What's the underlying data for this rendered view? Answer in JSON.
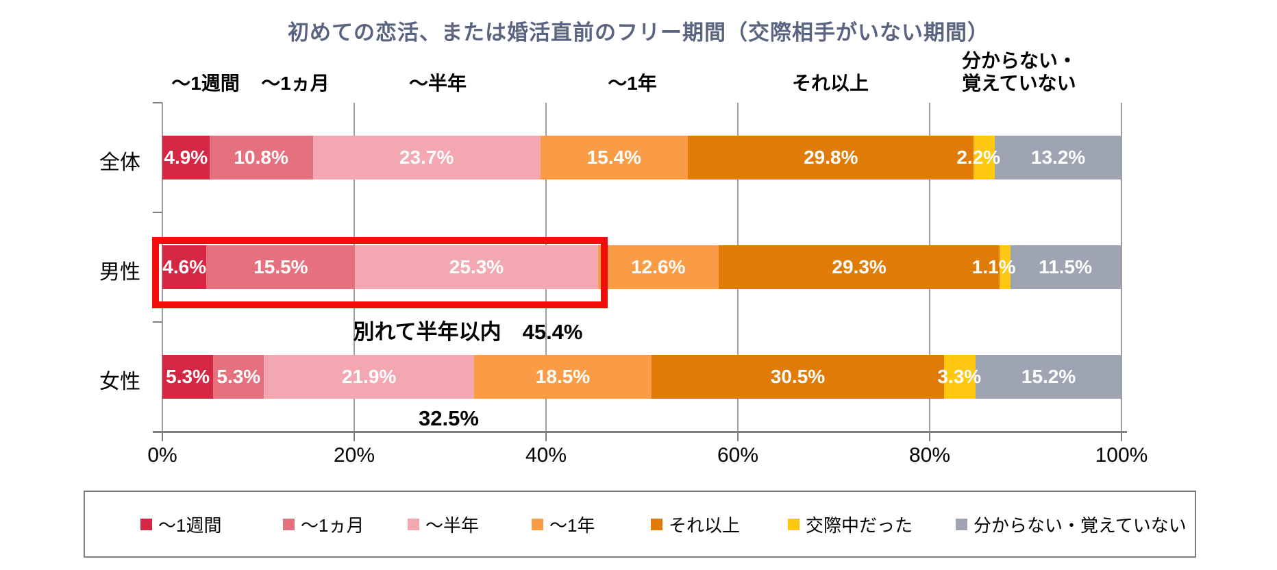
{
  "title": "初めての恋活、または婚活直前のフリー期間（交際相手がいない期間）",
  "chart_data": {
    "type": "bar",
    "variant": "horizontal-stacked-100pct",
    "title": "初めての恋活、または婚活直前のフリー期間（交際相手がいない期間）",
    "categories": [
      "全体",
      "男性",
      "女性"
    ],
    "segments": [
      {
        "label": "～1週間",
        "color": "#d32743"
      },
      {
        "label": "～1ヵ月",
        "color": "#e5717f"
      },
      {
        "label": "～半年",
        "color": "#f2a7b1"
      },
      {
        "label": "～1年",
        "color": "#f99c45"
      },
      {
        "label": "それ以上",
        "color": "#e07b08"
      },
      {
        "label": "交際中だった",
        "color": "#fec810"
      },
      {
        "label": "分からない・覚えていない",
        "color": "#9ea4b2"
      }
    ],
    "series": [
      {
        "name": "全体",
        "values": [
          4.9,
          10.8,
          23.7,
          15.4,
          29.8,
          2.2,
          13.2
        ]
      },
      {
        "name": "男性",
        "values": [
          4.6,
          15.5,
          25.3,
          12.6,
          29.3,
          1.1,
          11.5
        ]
      },
      {
        "name": "女性",
        "values": [
          5.3,
          5.3,
          21.9,
          18.5,
          30.5,
          3.3,
          15.2
        ]
      }
    ],
    "value_suffix": "%",
    "x_axis": {
      "min": 0,
      "max": 100,
      "tick_labels": [
        "0%",
        "20%",
        "40%",
        "60%",
        "80%",
        "100%"
      ],
      "grid": true
    },
    "top_labels": [
      "～1週間",
      "～1ヵ月",
      "～半年",
      "～1年",
      "それ以上",
      "分からない・\n覚えていない"
    ],
    "annotations": [
      {
        "id": "male-breakup",
        "text": "別れて半年以内　45.4%"
      },
      {
        "id": "female-cumulative",
        "text": "32.5%"
      }
    ],
    "highlight": {
      "row": "男性",
      "segments_covered": [
        "～1週間",
        "～1ヵ月",
        "～半年"
      ],
      "cumulative_value": "45.4%",
      "border_color": "#f20d0d"
    },
    "legend": {
      "position": "bottom",
      "items": [
        "～1週間",
        "～1ヵ月",
        "～半年",
        "～1年",
        "それ以上",
        "交際中だった",
        "分からない・覚えていない"
      ]
    }
  }
}
